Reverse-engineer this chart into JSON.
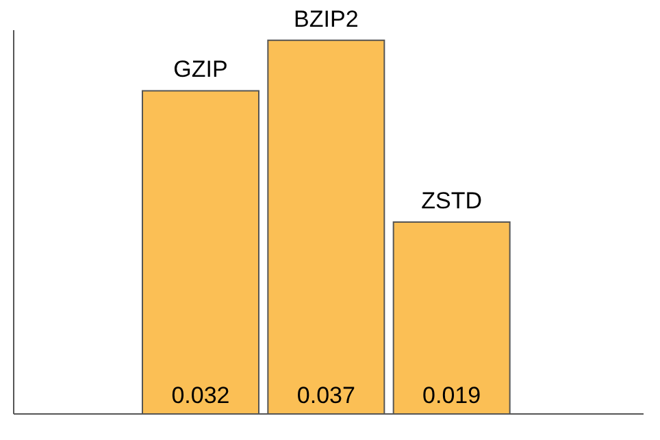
{
  "chart_data": {
    "type": "bar",
    "categories": [
      "GZIP",
      "BZIP2",
      "ZSTD"
    ],
    "values": [
      0.032,
      0.037,
      0.019
    ],
    "color": "#fbbf55",
    "data_labels": true,
    "tick_labels": false,
    "grid": false,
    "legend": false
  }
}
